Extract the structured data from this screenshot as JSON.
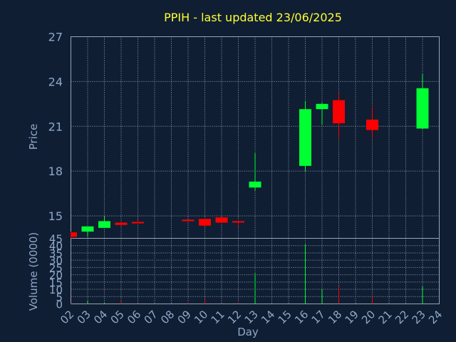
{
  "chart_data": {
    "type": "candlestick",
    "title": "PPIH - last updated 23/06/2025",
    "xlabel": "Day",
    "ylabel": "Price",
    "volume_label": "Volume (0000)",
    "x_ticks": [
      "02",
      "03",
      "04",
      "05",
      "06",
      "07",
      "08",
      "09",
      "10",
      "11",
      "12",
      "13",
      "14",
      "15",
      "16",
      "17",
      "18",
      "19",
      "20",
      "21",
      "22",
      "23",
      "24"
    ],
    "price_ticks": [
      15,
      18,
      21,
      24,
      27
    ],
    "price_range": [
      13.5,
      27
    ],
    "volume_ticks": [
      0,
      5,
      10,
      15,
      20,
      25,
      30,
      35,
      40,
      45
    ],
    "volume_range": [
      0,
      45
    ],
    "grid": true,
    "colors": {
      "up": "#00ff33",
      "down": "#ff0000",
      "title": "#ffff33",
      "axis": "#8fa8c8"
    },
    "candles": [
      {
        "day": "02",
        "open": 13.9,
        "high": 13.95,
        "low": 13.5,
        "close": 13.6
      },
      {
        "day": "03",
        "open": 13.95,
        "high": 14.3,
        "low": 13.6,
        "close": 14.3
      },
      {
        "day": "04",
        "open": 14.2,
        "high": 15.0,
        "low": 14.2,
        "close": 14.65
      },
      {
        "day": "05",
        "open": 14.55,
        "high": 14.6,
        "low": 14.3,
        "close": 14.4
      },
      {
        "day": "06",
        "open": 14.6,
        "high": 14.8,
        "low": 14.5,
        "close": 14.5
      },
      {
        "day": "09",
        "open": 14.75,
        "high": 14.8,
        "low": 14.6,
        "close": 14.65
      },
      {
        "day": "10",
        "open": 14.8,
        "high": 14.85,
        "low": 14.3,
        "close": 14.35
      },
      {
        "day": "11",
        "open": 14.9,
        "high": 14.95,
        "low": 14.5,
        "close": 14.55
      },
      {
        "day": "12",
        "open": 14.65,
        "high": 14.7,
        "low": 14.3,
        "close": 14.6
      },
      {
        "day": "13",
        "open": 16.9,
        "high": 19.2,
        "low": 16.7,
        "close": 17.3
      },
      {
        "day": "16",
        "open": 18.35,
        "high": 22.7,
        "low": 18.0,
        "close": 22.15
      },
      {
        "day": "17",
        "open": 22.15,
        "high": 22.6,
        "low": 21.1,
        "close": 22.5
      },
      {
        "day": "18",
        "open": 22.75,
        "high": 23.2,
        "low": 20.2,
        "close": 21.2
      },
      {
        "day": "20",
        "open": 21.45,
        "high": 22.3,
        "low": 20.2,
        "close": 20.75
      },
      {
        "day": "23",
        "open": 20.85,
        "high": 24.5,
        "low": 20.85,
        "close": 23.55
      }
    ],
    "volume": [
      {
        "day": "02",
        "value": 0.5,
        "dir": "down"
      },
      {
        "day": "03",
        "value": 2,
        "dir": "up"
      },
      {
        "day": "04",
        "value": 1,
        "dir": "up"
      },
      {
        "day": "05",
        "value": 2,
        "dir": "down"
      },
      {
        "day": "06",
        "value": 0.5,
        "dir": "down"
      },
      {
        "day": "09",
        "value": 1,
        "dir": "down"
      },
      {
        "day": "10",
        "value": 3,
        "dir": "down"
      },
      {
        "day": "11",
        "value": 0.5,
        "dir": "down"
      },
      {
        "day": "12",
        "value": 1,
        "dir": "down"
      },
      {
        "day": "13",
        "value": 21,
        "dir": "up"
      },
      {
        "day": "16",
        "value": 41,
        "dir": "up"
      },
      {
        "day": "17",
        "value": 10,
        "dir": "up"
      },
      {
        "day": "18",
        "value": 12,
        "dir": "down"
      },
      {
        "day": "20",
        "value": 5,
        "dir": "down"
      },
      {
        "day": "23",
        "value": 12,
        "dir": "up"
      }
    ]
  }
}
